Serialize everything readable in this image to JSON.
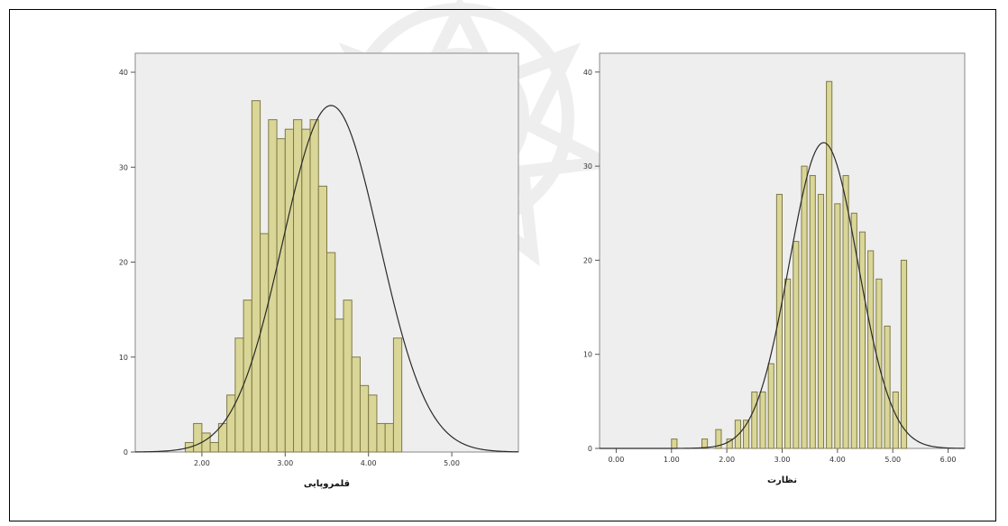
{
  "chart_data": [
    {
      "type": "bar",
      "xlabel": "قلمروپایی",
      "ylabel": "",
      "xlim": [
        1.2,
        5.8
      ],
      "ylim": [
        0,
        42
      ],
      "bin_width": 0.1,
      "xticks": [
        {
          "v": 2.0,
          "label": "2.00"
        },
        {
          "v": 3.0,
          "label": "3.00"
        },
        {
          "v": 4.0,
          "label": "4.00"
        },
        {
          "v": 5.0,
          "label": "5.00"
        }
      ],
      "yticks": [
        {
          "v": 0,
          "label": "0"
        },
        {
          "v": 10,
          "label": "10"
        },
        {
          "v": 20,
          "label": "20"
        },
        {
          "v": 30,
          "label": "30"
        },
        {
          "v": 40,
          "label": "40"
        }
      ],
      "bins": [
        {
          "x": 1.85,
          "y": 1
        },
        {
          "x": 1.95,
          "y": 3
        },
        {
          "x": 2.05,
          "y": 2
        },
        {
          "x": 2.15,
          "y": 1
        },
        {
          "x": 2.25,
          "y": 3
        },
        {
          "x": 2.35,
          "y": 6
        },
        {
          "x": 2.45,
          "y": 12
        },
        {
          "x": 2.55,
          "y": 16
        },
        {
          "x": 2.65,
          "y": 37
        },
        {
          "x": 2.75,
          "y": 23
        },
        {
          "x": 2.85,
          "y": 35
        },
        {
          "x": 2.95,
          "y": 33
        },
        {
          "x": 3.05,
          "y": 34
        },
        {
          "x": 3.15,
          "y": 35
        },
        {
          "x": 3.25,
          "y": 34
        },
        {
          "x": 3.35,
          "y": 35
        },
        {
          "x": 3.45,
          "y": 28
        },
        {
          "x": 3.55,
          "y": 21
        },
        {
          "x": 3.65,
          "y": 14
        },
        {
          "x": 3.75,
          "y": 16
        },
        {
          "x": 3.85,
          "y": 10
        },
        {
          "x": 3.95,
          "y": 7
        },
        {
          "x": 4.05,
          "y": 6
        },
        {
          "x": 4.15,
          "y": 3
        },
        {
          "x": 4.25,
          "y": 3
        },
        {
          "x": 4.35,
          "y": 12
        }
      ],
      "normal_curve": {
        "mean": 3.55,
        "sd": 0.58,
        "peak": 36.5
      }
    },
    {
      "type": "bar",
      "xlabel": "نظارت",
      "ylabel": "",
      "xlim": [
        -0.3,
        6.3
      ],
      "ylim": [
        0,
        42
      ],
      "bin_width": 0.1,
      "xticks": [
        {
          "v": 0,
          "label": "0.00"
        },
        {
          "v": 1,
          "label": "1.00"
        },
        {
          "v": 2,
          "label": "2.00"
        },
        {
          "v": 3,
          "label": "3.00"
        },
        {
          "v": 4,
          "label": "4.00"
        },
        {
          "v": 5,
          "label": "5.00"
        },
        {
          "v": 6,
          "label": "6.00"
        }
      ],
      "yticks": [
        {
          "v": 0,
          "label": "0"
        },
        {
          "v": 10,
          "label": "10"
        },
        {
          "v": 20,
          "label": "20"
        },
        {
          "v": 30,
          "label": "30"
        },
        {
          "v": 40,
          "label": "40"
        }
      ],
      "bins": [
        {
          "x": 1.05,
          "y": 1
        },
        {
          "x": 1.6,
          "y": 1
        },
        {
          "x": 1.85,
          "y": 2
        },
        {
          "x": 2.05,
          "y": 1
        },
        {
          "x": 2.2,
          "y": 3
        },
        {
          "x": 2.35,
          "y": 3
        },
        {
          "x": 2.5,
          "y": 6
        },
        {
          "x": 2.65,
          "y": 6
        },
        {
          "x": 2.8,
          "y": 9
        },
        {
          "x": 2.95,
          "y": 27
        },
        {
          "x": 3.1,
          "y": 18
        },
        {
          "x": 3.25,
          "y": 22
        },
        {
          "x": 3.4,
          "y": 30
        },
        {
          "x": 3.55,
          "y": 29
        },
        {
          "x": 3.7,
          "y": 27
        },
        {
          "x": 3.85,
          "y": 39
        },
        {
          "x": 4.0,
          "y": 26
        },
        {
          "x": 4.15,
          "y": 29
        },
        {
          "x": 4.3,
          "y": 25
        },
        {
          "x": 4.45,
          "y": 23
        },
        {
          "x": 4.6,
          "y": 21
        },
        {
          "x": 4.75,
          "y": 18
        },
        {
          "x": 4.9,
          "y": 13
        },
        {
          "x": 5.05,
          "y": 6
        },
        {
          "x": 5.2,
          "y": 20
        }
      ],
      "normal_curve": {
        "mean": 3.75,
        "sd": 0.62,
        "peak": 32.5
      }
    }
  ]
}
